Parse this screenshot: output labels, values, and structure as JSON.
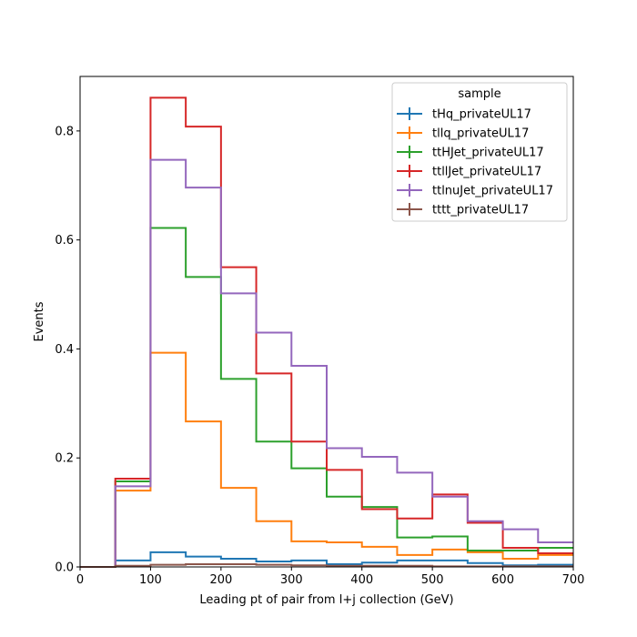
{
  "chart_data": {
    "type": "line",
    "drawstyle": "step-histogram",
    "xlabel": "Leading pt of pair from l+j collection (GeV)",
    "ylabel": "Events",
    "xlim": [
      0,
      700
    ],
    "ylim": [
      0,
      0.9
    ],
    "xticks": [
      0,
      100,
      200,
      300,
      400,
      500,
      600,
      700
    ],
    "yticks": [
      0.0,
      0.2,
      0.4,
      0.6,
      0.8
    ],
    "ytick_labels": [
      "0.0",
      "0.2",
      "0.4",
      "0.6",
      "0.8"
    ],
    "bin_edges": [
      0,
      50,
      100,
      150,
      200,
      250,
      300,
      350,
      400,
      450,
      500,
      550,
      600,
      650,
      700
    ],
    "grid": false,
    "legend": {
      "title": "sample",
      "placement": "top-right"
    },
    "series": [
      {
        "name": "tHq_privateUL17",
        "color": "#1f77b4",
        "values": [
          0.0,
          0.012,
          0.027,
          0.019,
          0.015,
          0.01,
          0.012,
          0.005,
          0.008,
          0.012,
          0.012,
          0.007,
          0.003,
          0.004
        ]
      },
      {
        "name": "tllq_privateUL17",
        "color": "#ff7f0e",
        "values": [
          0.0,
          0.14,
          0.393,
          0.267,
          0.145,
          0.084,
          0.047,
          0.045,
          0.037,
          0.022,
          0.032,
          0.027,
          0.015,
          0.022
        ]
      },
      {
        "name": "ttHJet_privateUL17",
        "color": "#2ca02c",
        "values": [
          0.0,
          0.157,
          0.622,
          0.532,
          0.345,
          0.23,
          0.181,
          0.129,
          0.11,
          0.054,
          0.056,
          0.03,
          0.03,
          0.035
        ]
      },
      {
        "name": "ttllJet_privateUL17",
        "color": "#d62728",
        "values": [
          0.0,
          0.162,
          0.861,
          0.808,
          0.55,
          0.355,
          0.23,
          0.178,
          0.106,
          0.089,
          0.133,
          0.081,
          0.035,
          0.025
        ]
      },
      {
        "name": "ttlnuJet_privateUL17",
        "color": "#9467bd",
        "values": [
          0.0,
          0.148,
          0.747,
          0.696,
          0.502,
          0.43,
          0.369,
          0.218,
          0.202,
          0.173,
          0.129,
          0.084,
          0.069,
          0.045
        ]
      },
      {
        "name": "tttt_privateUL17",
        "color": "#8c564b",
        "values": [
          0.0,
          0.002,
          0.004,
          0.005,
          0.005,
          0.004,
          0.003,
          0.002,
          0.002,
          0.002,
          0.001,
          0.001,
          0.001,
          0.001
        ]
      }
    ]
  }
}
